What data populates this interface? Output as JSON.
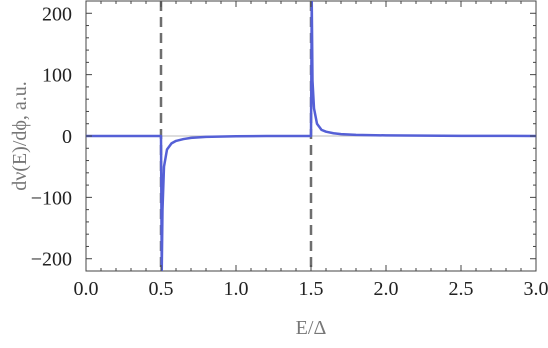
{
  "chart_data": {
    "type": "line",
    "xlabel": "E/Δ",
    "ylabel": "dν(E)/dϕ, a.u.",
    "xlim": [
      0,
      3
    ],
    "ylim": [
      -220,
      220
    ],
    "x_ticks": [
      0.0,
      0.5,
      1.0,
      1.5,
      2.0,
      2.5,
      3.0
    ],
    "x_tick_labels": [
      "0.0",
      "0.5",
      "1.0",
      "1.5",
      "2.0",
      "2.5",
      "3.0"
    ],
    "y_ticks": [
      -200,
      -100,
      0,
      100,
      200
    ],
    "y_tick_labels": [
      "−200",
      "−100",
      "0",
      "100",
      "200"
    ],
    "vertical_dashed_lines": [
      0.5,
      1.5
    ],
    "grid": false,
    "series": [
      {
        "color": "#5560d6",
        "x": [
          0.0,
          0.45,
          0.49,
          0.495,
          0.5,
          0.505,
          0.51,
          0.52,
          0.54,
          0.57,
          0.6,
          0.65,
          0.7,
          0.8,
          1.0,
          1.2,
          1.4,
          1.45,
          1.49,
          1.495,
          1.5,
          1.505,
          1.51,
          1.52,
          1.54,
          1.57,
          1.6,
          1.65,
          1.7,
          1.8,
          2.0,
          2.5,
          3.0
        ],
        "y": [
          0,
          0,
          0,
          0,
          0,
          -220,
          -120,
          -50,
          -22,
          -12,
          -8,
          -5,
          -3,
          -1.5,
          -0.5,
          0,
          0,
          0,
          0,
          0,
          0,
          220,
          90,
          45,
          20,
          10,
          7,
          4.5,
          3,
          1.8,
          1,
          0.3,
          0
        ]
      }
    ]
  }
}
